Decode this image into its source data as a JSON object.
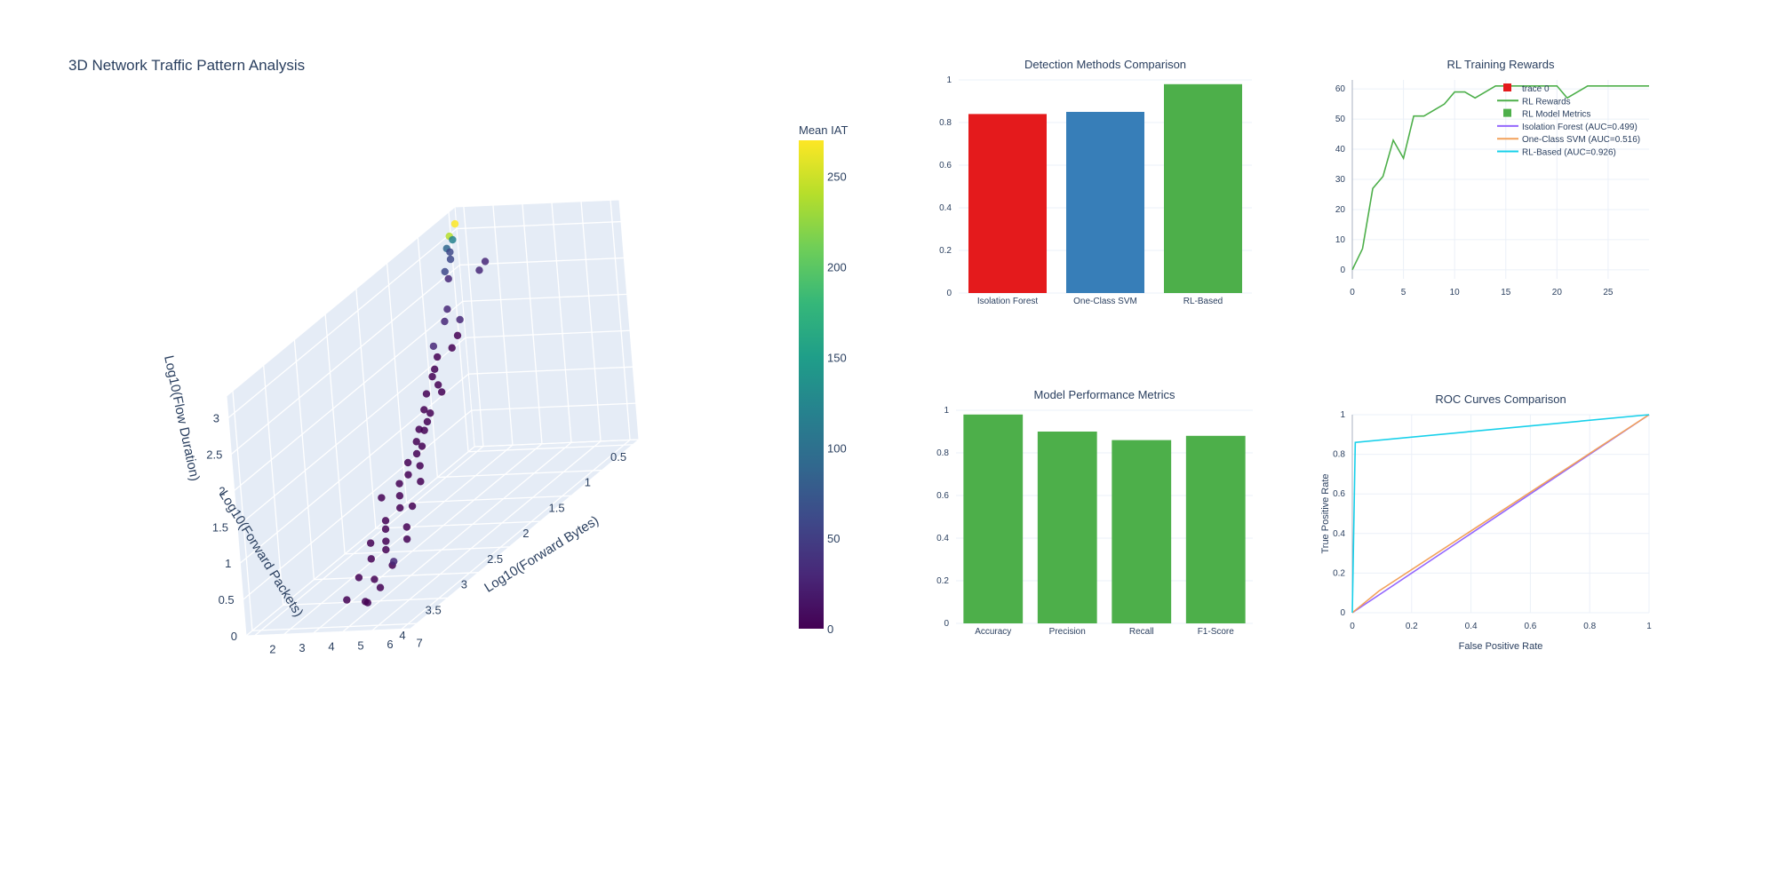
{
  "main_title": "3D Network Traffic Pattern Analysis",
  "colors": {
    "text": "#2a3f5f",
    "grid": "#ebf0f8",
    "scene_bg": "#e5ecf6",
    "red": "#e41a1c",
    "blue": "#377eb8",
    "green": "#4daf4a",
    "purple": "#9467fd",
    "orange": "#f2a15a",
    "cyan": "#17d0ea",
    "viridis": [
      "#440154",
      "#482878",
      "#3e4989",
      "#31688e",
      "#26828e",
      "#1f9e89",
      "#35b779",
      "#6ece58",
      "#b5de2b",
      "#fde725"
    ]
  },
  "chart_data": [
    {
      "id": "scatter3d",
      "type": "scatter",
      "title": "3D Network Traffic Pattern Analysis",
      "xlabel": "Log10(Forward Bytes)",
      "ylabel": "Log10(Forward Packets)",
      "zlabel": "Log10(Flow Duration)",
      "x_ticks": [
        "2",
        "3",
        "4",
        "5",
        "6",
        "7"
      ],
      "y_ticks": [
        "0.5",
        "1",
        "1.5",
        "2",
        "2.5",
        "3",
        "3.5",
        "4"
      ],
      "z_ticks": [
        "0",
        "0.5",
        "1",
        "1.5",
        "2",
        "2.5",
        "3"
      ],
      "xlim": [
        1.7,
        7.3
      ],
      "ylim": [
        0.4,
        4.1
      ],
      "zlim": [
        0,
        3.3
      ],
      "colorbar": {
        "title": "Mean IAT",
        "range": [
          0,
          270
        ],
        "ticks": [
          "0",
          "50",
          "100",
          "150",
          "200",
          "250"
        ]
      },
      "points": [
        {
          "x": 2.1,
          "y": 0.6,
          "z": 3.2,
          "c": 262
        },
        {
          "x": 2.1,
          "y": 0.7,
          "z": 3.1,
          "c": 235
        },
        {
          "x": 2.2,
          "y": 0.7,
          "z": 3.05,
          "c": 120
        },
        {
          "x": 2.2,
          "y": 0.8,
          "z": 3.0,
          "c": 95
        },
        {
          "x": 2.3,
          "y": 0.8,
          "z": 2.95,
          "c": 60
        },
        {
          "x": 2.3,
          "y": 0.8,
          "z": 2.85,
          "c": 55
        },
        {
          "x": 2.3,
          "y": 0.9,
          "z": 2.75,
          "c": 48
        },
        {
          "x": 2.4,
          "y": 0.9,
          "z": 2.65,
          "c": 40
        },
        {
          "x": 2.8,
          "y": 0.5,
          "z": 2.6,
          "c": 35
        },
        {
          "x": 2.8,
          "y": 0.6,
          "z": 2.55,
          "c": 30
        },
        {
          "x": 2.5,
          "y": 1.0,
          "z": 2.3,
          "c": 25
        },
        {
          "x": 2.6,
          "y": 1.1,
          "z": 2.2,
          "c": 18
        },
        {
          "x": 2.9,
          "y": 1.0,
          "z": 2.15,
          "c": 15
        },
        {
          "x": 3.0,
          "y": 1.1,
          "z": 2.0,
          "c": 12
        },
        {
          "x": 3.0,
          "y": 1.2,
          "z": 1.9,
          "c": 10
        },
        {
          "x": 2.6,
          "y": 1.3,
          "z": 2.0,
          "c": 20
        },
        {
          "x": 2.7,
          "y": 1.3,
          "z": 1.85,
          "c": 8
        },
        {
          "x": 2.8,
          "y": 1.4,
          "z": 1.75,
          "c": 6
        },
        {
          "x": 2.7,
          "y": 1.4,
          "z": 1.65,
          "c": 10
        },
        {
          "x": 3.1,
          "y": 1.5,
          "z": 1.6,
          "c": 8
        },
        {
          "x": 3.2,
          "y": 1.5,
          "z": 1.5,
          "c": 5
        },
        {
          "x": 2.9,
          "y": 1.6,
          "z": 1.55,
          "c": 12
        },
        {
          "x": 3.0,
          "y": 1.7,
          "z": 1.4,
          "c": 4
        },
        {
          "x": 3.2,
          "y": 1.7,
          "z": 1.35,
          "c": 6
        },
        {
          "x": 3.3,
          "y": 1.8,
          "z": 1.3,
          "c": 9
        },
        {
          "x": 3.0,
          "y": 1.8,
          "z": 1.2,
          "c": 3
        },
        {
          "x": 3.4,
          "y": 1.9,
          "z": 1.25,
          "c": 14
        },
        {
          "x": 3.1,
          "y": 1.9,
          "z": 1.1,
          "c": 7
        },
        {
          "x": 3.3,
          "y": 2.0,
          "z": 1.0,
          "c": 4
        },
        {
          "x": 3.5,
          "y": 2.0,
          "z": 1.1,
          "c": 11
        },
        {
          "x": 3.2,
          "y": 2.1,
          "z": 0.95,
          "c": 2
        },
        {
          "x": 3.6,
          "y": 2.1,
          "z": 0.9,
          "c": 8
        },
        {
          "x": 3.4,
          "y": 2.2,
          "z": 0.85,
          "c": 5
        },
        {
          "x": 3.3,
          "y": 2.3,
          "z": 0.8,
          "c": 3
        },
        {
          "x": 3.8,
          "y": 2.2,
          "z": 0.75,
          "c": 6
        },
        {
          "x": 3.5,
          "y": 2.4,
          "z": 0.7,
          "c": 4
        },
        {
          "x": 3.1,
          "y": 2.5,
          "z": 0.75,
          "c": 9
        },
        {
          "x": 3.7,
          "y": 2.5,
          "z": 0.6,
          "c": 2
        },
        {
          "x": 3.9,
          "y": 2.4,
          "z": 0.55,
          "c": 7
        },
        {
          "x": 3.4,
          "y": 2.6,
          "z": 0.5,
          "c": 3
        },
        {
          "x": 3.6,
          "y": 2.7,
          "z": 0.45,
          "c": 10
        },
        {
          "x": 4.1,
          "y": 2.6,
          "z": 0.4,
          "c": 5
        },
        {
          "x": 3.8,
          "y": 2.8,
          "z": 0.35,
          "c": 4
        },
        {
          "x": 3.5,
          "y": 2.9,
          "z": 0.4,
          "c": 8
        },
        {
          "x": 4.0,
          "y": 2.9,
          "z": 0.3,
          "c": 2
        },
        {
          "x": 4.3,
          "y": 2.7,
          "z": 0.3,
          "c": 6
        },
        {
          "x": 3.7,
          "y": 3.0,
          "z": 0.25,
          "c": 3
        },
        {
          "x": 4.4,
          "y": 3.0,
          "z": 0.15,
          "c": 5
        },
        {
          "x": 4.2,
          "y": 3.2,
          "z": 0.1,
          "c": 9
        },
        {
          "x": 3.9,
          "y": 3.3,
          "z": 0.2,
          "c": 4
        },
        {
          "x": 4.6,
          "y": 3.3,
          "z": 0.05,
          "c": 7
        },
        {
          "x": 4.5,
          "y": 3.5,
          "z": 0.0,
          "c": 3
        },
        {
          "x": 4.8,
          "y": 3.6,
          "z": 0.05,
          "c": 12
        },
        {
          "x": 4.1,
          "y": 3.6,
          "z": 0.1,
          "c": 6
        },
        {
          "x": 5.8,
          "y": 3.6,
          "z": 0.6,
          "c": 15
        }
      ]
    },
    {
      "id": "detection",
      "type": "bar",
      "title": "Detection Methods Comparison",
      "categories": [
        "Isolation Forest",
        "One-Class SVM",
        "RL-Based"
      ],
      "values": [
        0.84,
        0.85,
        0.98
      ],
      "bar_colors": [
        "#e41a1c",
        "#377eb8",
        "#4daf4a"
      ],
      "ylim": [
        0,
        1
      ],
      "y_ticks": [
        "0",
        "0.2",
        "0.4",
        "0.6",
        "0.8",
        "1"
      ]
    },
    {
      "id": "rewards",
      "type": "line",
      "title": "RL Training Rewards",
      "xlim": [
        0,
        29
      ],
      "ylim": [
        -3,
        63
      ],
      "x_ticks": [
        "0",
        "5",
        "10",
        "15",
        "20",
        "25"
      ],
      "y_ticks": [
        "0",
        "10",
        "20",
        "30",
        "40",
        "50",
        "60"
      ],
      "series": [
        {
          "name": "RL Rewards",
          "x": [
            0,
            1,
            2,
            3,
            4,
            5,
            6,
            7,
            8,
            9,
            10,
            11,
            12,
            13,
            14,
            15,
            16,
            17,
            18,
            19,
            20,
            21,
            22,
            23,
            24,
            25,
            26,
            27,
            28,
            29
          ],
          "values": [
            0,
            7,
            27,
            31,
            43,
            37,
            51,
            51,
            53,
            55,
            59,
            59,
            57,
            59,
            61,
            61,
            61,
            61,
            61,
            61,
            61,
            57,
            59,
            61,
            61,
            61,
            61,
            61,
            61,
            61
          ]
        }
      ],
      "legend": [
        {
          "label": "trace 0",
          "kind": "square",
          "color": "#e41a1c"
        },
        {
          "label": "RL Rewards",
          "kind": "line",
          "color": "#4daf4a"
        },
        {
          "label": "RL Model Metrics",
          "kind": "square",
          "color": "#4daf4a"
        },
        {
          "label": "Isolation Forest (AUC=0.499)",
          "kind": "line",
          "color": "#9467fd"
        },
        {
          "label": "One-Class SVM (AUC=0.516)",
          "kind": "line",
          "color": "#f2a15a"
        },
        {
          "label": "RL-Based (AUC=0.926)",
          "kind": "line",
          "color": "#17d0ea"
        }
      ]
    },
    {
      "id": "metrics",
      "type": "bar",
      "title": "Model Performance Metrics",
      "categories": [
        "Accuracy",
        "Precision",
        "Recall",
        "F1-Score"
      ],
      "values": [
        0.98,
        0.9,
        0.86,
        0.88
      ],
      "bar_colors": [
        "#4daf4a",
        "#4daf4a",
        "#4daf4a",
        "#4daf4a"
      ],
      "ylim": [
        0,
        1
      ],
      "y_ticks": [
        "0",
        "0.2",
        "0.4",
        "0.6",
        "0.8",
        "1"
      ]
    },
    {
      "id": "roc",
      "type": "line",
      "title": "ROC Curves Comparison",
      "xlabel": "False Positive Rate",
      "ylabel": "True Positive Rate",
      "xlim": [
        0,
        1
      ],
      "ylim": [
        0,
        1
      ],
      "x_ticks": [
        "0",
        "0.2",
        "0.4",
        "0.6",
        "0.8",
        "1"
      ],
      "y_ticks": [
        "0",
        "0.2",
        "0.4",
        "0.6",
        "0.8",
        "1"
      ],
      "series": [
        {
          "name": "Isolation Forest (AUC=0.499)",
          "color": "#9467fd",
          "x": [
            0,
            1
          ],
          "values": [
            0,
            1
          ]
        },
        {
          "name": "One-Class SVM (AUC=0.516)",
          "color": "#f2a15a",
          "x": [
            0,
            0.09,
            1
          ],
          "values": [
            0,
            0.11,
            1
          ]
        },
        {
          "name": "RL-Based (AUC=0.926)",
          "color": "#17d0ea",
          "x": [
            0,
            0.01,
            1
          ],
          "values": [
            0,
            0.86,
            1
          ]
        }
      ]
    }
  ]
}
